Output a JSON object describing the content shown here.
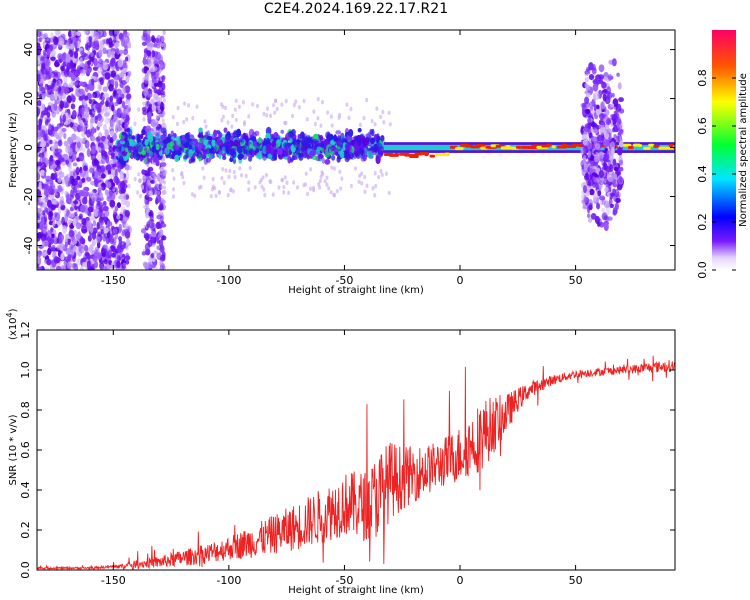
{
  "title": "C2E4.2024.169.22.17.R21",
  "colors": {
    "snr_line": "#ee2222",
    "spectrum_deep": "#5500dd",
    "spectrum_light": "#c9a6f2",
    "spectrum_cyan": "#22cccc",
    "spectrum_red": "#ee2200",
    "spectrum_yellow": "#ffee00"
  },
  "chart_data": [
    {
      "type": "heatmap",
      "title": "C2E4.2024.169.22.17.R21",
      "xlabel": "Height of straight line (km)",
      "ylabel": "Frequency (Hz)",
      "xlim": [
        -183,
        93
      ],
      "ylim": [
        -50,
        48
      ],
      "xticks": [
        -150,
        -100,
        -50,
        0,
        50
      ],
      "xtick_labels": [
        "-150",
        "-100",
        "-50",
        "0",
        "50"
      ],
      "yticks": [
        40,
        20,
        0,
        -20,
        -40
      ],
      "ytick_labels": [
        "40",
        "20",
        "0",
        "-20",
        "-40"
      ],
      "colorbar": {
        "label": "Normalized spectral amplitude",
        "range": [
          0.0,
          1.0
        ],
        "ticks": [
          0.0,
          0.2,
          0.4,
          0.6,
          0.8
        ],
        "tick_labels": [
          "0.0",
          "0.2",
          "0.4",
          "0.6",
          "0.8"
        ],
        "colormap": "rainbow (magenta-blue-cyan-green-yellow-red)"
      },
      "regions": [
        {
          "name": "broadband noise (left)",
          "x": [
            -183,
            -143
          ],
          "freq": [
            -50,
            48
          ],
          "amplitude": 0.15
        },
        {
          "name": "broadband noise (mid)",
          "x": [
            -137,
            -128
          ],
          "freq": [
            -50,
            48
          ],
          "amplitude": 0.15
        },
        {
          "name": "turbulent band",
          "x": [
            -148,
            -33
          ],
          "freq": [
            -7,
            8
          ],
          "amplitude": 0.35
        },
        {
          "name": "narrow carrier",
          "x": [
            -33,
            93
          ],
          "freq": [
            -2,
            2
          ],
          "amplitude": 0.9
        },
        {
          "name": "burst near 60 km",
          "x": [
            53,
            70
          ],
          "freq": [
            -35,
            38
          ],
          "amplitude": 0.2
        }
      ]
    },
    {
      "type": "line",
      "xlabel": "Height of straight line (km)",
      "ylabel": "SNR (10 * v/v)",
      "yscale_label": "(x10",
      "yscale_exponent": "4",
      "xlim": [
        -183,
        93
      ],
      "ylim": [
        0,
        1.2
      ],
      "xticks": [
        -150,
        -100,
        -50,
        0,
        50
      ],
      "xtick_labels": [
        "-150",
        "-100",
        "-50",
        "0",
        "50"
      ],
      "yticks": [
        0.0,
        0.2,
        0.4,
        0.6,
        0.8,
        1.0,
        1.2
      ],
      "ytick_labels": [
        "0.0",
        "0.2",
        "0.4",
        "0.6",
        "0.8",
        "1.0",
        "1.2"
      ],
      "series": [
        {
          "name": "SNR",
          "x": [
            -183,
            -160,
            -145,
            -140,
            -130,
            -120,
            -110,
            -100,
            -90,
            -80,
            -70,
            -60,
            -50,
            -40,
            -35,
            -30,
            -25,
            -20,
            -10,
            0,
            10,
            20,
            25,
            30,
            40,
            50,
            60,
            70,
            80,
            90,
            93
          ],
          "y": [
            0.01,
            0.01,
            0.02,
            0.03,
            0.04,
            0.06,
            0.08,
            0.11,
            0.14,
            0.18,
            0.22,
            0.27,
            0.33,
            0.32,
            0.38,
            0.45,
            0.46,
            0.48,
            0.52,
            0.58,
            0.68,
            0.78,
            0.85,
            0.9,
            0.95,
            0.98,
            0.99,
            1.0,
            1.01,
            1.02,
            1.02
          ],
          "spread": [
            0.004,
            0.005,
            0.01,
            0.02,
            0.03,
            0.04,
            0.05,
            0.06,
            0.08,
            0.1,
            0.12,
            0.14,
            0.16,
            0.18,
            0.22,
            0.2,
            0.16,
            0.14,
            0.12,
            0.14,
            0.18,
            0.1,
            0.06,
            0.04,
            0.025,
            0.02,
            0.02,
            0.02,
            0.025,
            0.03,
            0.03
          ]
        }
      ]
    }
  ]
}
